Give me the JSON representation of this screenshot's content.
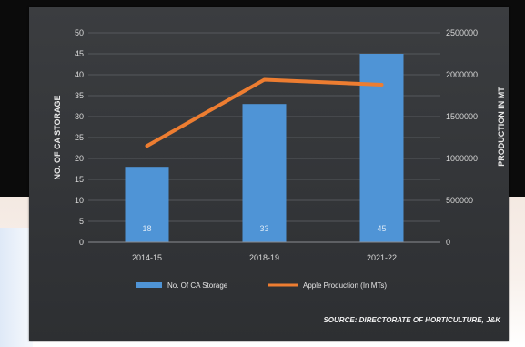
{
  "chart_data": {
    "type": "bar",
    "categories": [
      "2014-15",
      "2018-19",
      "2021-22"
    ],
    "series": [
      {
        "name": "No. Of CA Storage",
        "type": "bar",
        "axis": "left",
        "values": [
          18,
          33,
          45
        ],
        "color": "#4f94d6"
      },
      {
        "name": "Apple Production (In MTs)",
        "type": "line",
        "axis": "right",
        "values": [
          1150000,
          1940000,
          1880000
        ],
        "color": "#ed7d31"
      }
    ],
    "data_labels": [
      "18",
      "33",
      "45"
    ],
    "ylabel": "NO. OF CA STORAGE",
    "y2label": "PRODUCTION IN MT",
    "ylim": [
      0,
      50
    ],
    "y2lim": [
      0,
      2500000
    ],
    "yticks": [
      "0",
      "5",
      "10",
      "15",
      "20",
      "25",
      "30",
      "35",
      "40",
      "45",
      "50"
    ],
    "y2ticks": [
      "0",
      "500000",
      "1000000",
      "1500000",
      "2000000",
      "2500000"
    ],
    "grid": true,
    "legend_position": "bottom",
    "source": "SOURCE: DIRECTORATE OF HORTICULTURE, J&K"
  }
}
